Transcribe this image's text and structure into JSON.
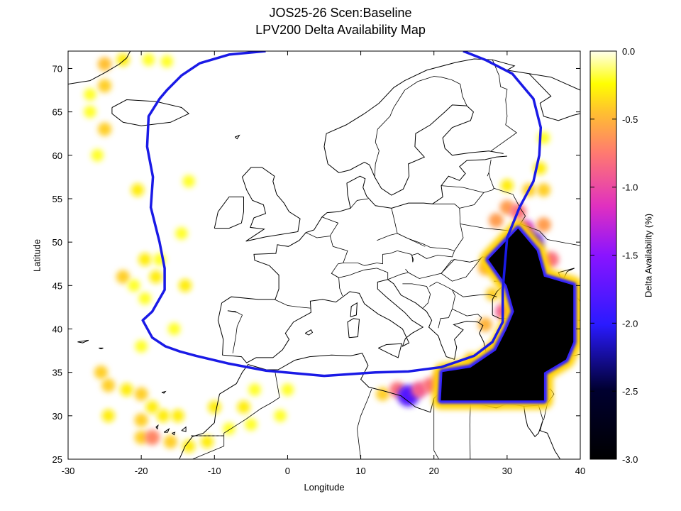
{
  "title_line1": "JOS25-26 Scen:Baseline",
  "title_line2": "LPV200 Delta Availability Map",
  "xlabel": "Longitude",
  "ylabel": "Latitude",
  "colorbar_label": "Delta Availability (%)",
  "chart_data": {
    "type": "heatmap",
    "title": "JOS25-26 Scen:Baseline LPV200 Delta Availability Map",
    "xlabel": "Longitude",
    "ylabel": "Latitude",
    "xlim": [
      -30,
      40
    ],
    "ylim": [
      25,
      72
    ],
    "x_ticks": [
      -30,
      -20,
      -10,
      0,
      10,
      20,
      30,
      40
    ],
    "y_ticks": [
      25,
      30,
      35,
      40,
      45,
      50,
      55,
      60,
      65,
      70
    ],
    "colorbar": {
      "label": "Delta Availability (%)",
      "range": [
        -3.0,
        0.0
      ],
      "ticks": [
        "0.0",
        "-0.5",
        "-1.0",
        "-1.5",
        "-2.0",
        "-2.5",
        "-3.0"
      ]
    },
    "service_area_boundary_color": "#1a1ae6",
    "service_area_boundary": [
      [
        -3,
        72
      ],
      [
        -8,
        71.6
      ],
      [
        -12,
        70.6
      ],
      [
        -14.5,
        69.2
      ],
      [
        -16.5,
        67.5
      ],
      [
        -17.5,
        66.5
      ],
      [
        -19,
        64.5
      ],
      [
        -19.2,
        61
      ],
      [
        -18.4,
        57.5
      ],
      [
        -18.7,
        54
      ],
      [
        -17.5,
        50
      ],
      [
        -16.8,
        47
      ],
      [
        -16.8,
        44.5
      ],
      [
        -18.5,
        42
      ],
      [
        -19.8,
        41
      ],
      [
        -18.5,
        39
      ],
      [
        -16.7,
        38
      ],
      [
        -14.7,
        37.4
      ],
      [
        -12.5,
        36.9
      ],
      [
        -8,
        36
      ],
      [
        -3,
        35.2
      ],
      [
        5,
        34.6
      ],
      [
        12,
        35
      ],
      [
        16.5,
        35.1
      ],
      [
        21,
        35.6
      ],
      [
        25.5,
        36.9
      ],
      [
        28,
        38.5
      ],
      [
        29.4,
        40.8
      ],
      [
        29.4,
        44.5
      ],
      [
        29.7,
        47.5
      ],
      [
        30,
        50.5
      ],
      [
        31.7,
        54
      ],
      [
        33.6,
        57
      ],
      [
        34.4,
        60
      ],
      [
        34.6,
        63.2
      ],
      [
        33.6,
        66.5
      ],
      [
        30.7,
        69.4
      ],
      [
        27,
        71
      ],
      [
        24,
        72
      ]
    ],
    "black_region": [
      [
        27.5,
        48
      ],
      [
        31.5,
        51.5
      ],
      [
        34,
        49
      ],
      [
        35,
        46
      ],
      [
        39,
        45
      ],
      [
        39,
        38.5
      ],
      [
        38,
        36.5
      ],
      [
        35,
        35
      ],
      [
        35,
        31.8
      ],
      [
        21,
        31.8
      ],
      [
        21.2,
        35
      ],
      [
        25,
        35.5
      ],
      [
        28.5,
        37.5
      ],
      [
        30,
        40
      ],
      [
        31,
        42
      ],
      [
        30,
        45
      ]
    ],
    "degradation_spots": [
      {
        "lon": -25,
        "lat": 70.5,
        "delta": -0.45
      },
      {
        "lon": -22.5,
        "lat": 71,
        "delta": -0.3
      },
      {
        "lon": -19,
        "lat": 71,
        "delta": -0.2
      },
      {
        "lon": -16.5,
        "lat": 70.8,
        "delta": -0.2
      },
      {
        "lon": -25,
        "lat": 68,
        "delta": -0.4
      },
      {
        "lon": -27,
        "lat": 67,
        "delta": -0.2
      },
      {
        "lon": -27,
        "lat": 65,
        "delta": -0.2
      },
      {
        "lon": -25,
        "lat": 63,
        "delta": -0.4
      },
      {
        "lon": -26,
        "lat": 60,
        "delta": -0.2
      },
      {
        "lon": -20.5,
        "lat": 56,
        "delta": -0.3
      },
      {
        "lon": -13.5,
        "lat": 57,
        "delta": -0.2
      },
      {
        "lon": -14.5,
        "lat": 51,
        "delta": -0.2
      },
      {
        "lon": -19.5,
        "lat": 48,
        "delta": -0.3
      },
      {
        "lon": -17.5,
        "lat": 48,
        "delta": -0.2
      },
      {
        "lon": -18,
        "lat": 46,
        "delta": -0.3
      },
      {
        "lon": -22.5,
        "lat": 46,
        "delta": -0.4
      },
      {
        "lon": -21,
        "lat": 45,
        "delta": -0.2
      },
      {
        "lon": -14,
        "lat": 45,
        "delta": -0.3
      },
      {
        "lon": -19.5,
        "lat": 43.5,
        "delta": -0.2
      },
      {
        "lon": -15.5,
        "lat": 40,
        "delta": -0.2
      },
      {
        "lon": -20,
        "lat": 38,
        "delta": -0.2
      },
      {
        "lon": -25.5,
        "lat": 35,
        "delta": -0.4
      },
      {
        "lon": -24.5,
        "lat": 33.5,
        "delta": -0.4
      },
      {
        "lon": -22,
        "lat": 33,
        "delta": -0.3
      },
      {
        "lon": -20,
        "lat": 32.5,
        "delta": -0.4
      },
      {
        "lon": -18.5,
        "lat": 31,
        "delta": -0.3
      },
      {
        "lon": -24.5,
        "lat": 30,
        "delta": -0.3
      },
      {
        "lon": -20,
        "lat": 29.5,
        "delta": -0.4
      },
      {
        "lon": -17,
        "lat": 30,
        "delta": -0.3
      },
      {
        "lon": -15,
        "lat": 30,
        "delta": -0.3
      },
      {
        "lon": -20,
        "lat": 27.5,
        "delta": -0.4
      },
      {
        "lon": -18.5,
        "lat": 27.5,
        "delta": -0.7
      },
      {
        "lon": -16,
        "lat": 27,
        "delta": -0.4
      },
      {
        "lon": -13.5,
        "lat": 26.5,
        "delta": -0.3
      },
      {
        "lon": -11,
        "lat": 27,
        "delta": -0.3
      },
      {
        "lon": -10,
        "lat": 31,
        "delta": -0.3
      },
      {
        "lon": -8,
        "lat": 28.5,
        "delta": -0.2
      },
      {
        "lon": -6,
        "lat": 31,
        "delta": -0.3
      },
      {
        "lon": -4.5,
        "lat": 33,
        "delta": -0.2
      },
      {
        "lon": 0,
        "lat": 33,
        "delta": -0.2
      },
      {
        "lon": -5,
        "lat": 29,
        "delta": -0.2
      },
      {
        "lon": -1,
        "lat": 30,
        "delta": -0.2
      },
      {
        "lon": 13,
        "lat": 32.5,
        "delta": -0.4
      },
      {
        "lon": 15,
        "lat": 33,
        "delta": -0.8
      },
      {
        "lon": 16.5,
        "lat": 32.3,
        "delta": -1.8
      },
      {
        "lon": 18,
        "lat": 33,
        "delta": -0.9
      },
      {
        "lon": 19.5,
        "lat": 33.5,
        "delta": -0.8
      },
      {
        "lon": 21,
        "lat": 34.2,
        "delta": -0.8
      },
      {
        "lon": 27,
        "lat": 31.8,
        "delta": -0.5
      },
      {
        "lon": 28.5,
        "lat": 31.8,
        "delta": -0.4
      },
      {
        "lon": 28,
        "lat": 44,
        "delta": -0.4
      },
      {
        "lon": 27,
        "lat": 40.5,
        "delta": -0.5
      },
      {
        "lon": 27,
        "lat": 47,
        "delta": -0.5
      },
      {
        "lon": 28.5,
        "lat": 48,
        "delta": -0.7
      },
      {
        "lon": 28.5,
        "lat": 52.5,
        "delta": -0.6
      },
      {
        "lon": 30,
        "lat": 54,
        "delta": -0.6
      },
      {
        "lon": 30,
        "lat": 56.5,
        "delta": -0.3
      },
      {
        "lon": 33,
        "lat": 56,
        "delta": -0.4
      },
      {
        "lon": 35,
        "lat": 56,
        "delta": -0.4
      },
      {
        "lon": 34.5,
        "lat": 58.5,
        "delta": -0.3
      },
      {
        "lon": 35,
        "lat": 62,
        "delta": -0.2
      },
      {
        "lon": 31.5,
        "lat": 53.5,
        "delta": -0.8
      },
      {
        "lon": 32.5,
        "lat": 51.5,
        "delta": -1.2
      },
      {
        "lon": 33.5,
        "lat": 50,
        "delta": -1.8
      },
      {
        "lon": 35,
        "lat": 52,
        "delta": -0.6
      },
      {
        "lon": 36,
        "lat": 48,
        "delta": -0.8
      },
      {
        "lon": 31,
        "lat": 44,
        "delta": -1.2
      },
      {
        "lon": 29.5,
        "lat": 42,
        "delta": -0.9
      },
      {
        "lon": 28,
        "lat": 37.5,
        "delta": -0.6
      },
      {
        "lon": 25,
        "lat": 36.5,
        "delta": -0.4
      },
      {
        "lon": 38,
        "lat": 40,
        "delta": -0.6
      }
    ]
  }
}
